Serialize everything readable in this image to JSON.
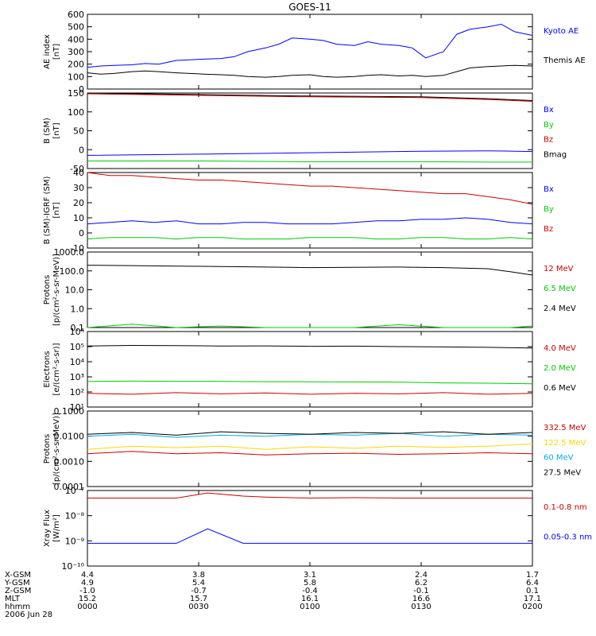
{
  "title": "GOES-11",
  "colors": {
    "black": "#000000",
    "blue": "#0000ff",
    "red": "#cc0000",
    "green": "#00cc00",
    "yellow": "#ffd700",
    "cyan": "#00aadd"
  },
  "chart_data": [
    {
      "type": "line",
      "ylabel": [
        "AE index",
        "[nT]"
      ],
      "ylim": [
        0,
        600
      ],
      "scale": "linear",
      "ticks": [
        0,
        100,
        200,
        300,
        400,
        500,
        600
      ],
      "tick_labels": [
        "0",
        "100",
        "200",
        "300",
        "400",
        "500",
        "600"
      ],
      "x": [
        0,
        0.03,
        0.06,
        0.1,
        0.13,
        0.16,
        0.2,
        0.23,
        0.26,
        0.3,
        0.33,
        0.36,
        0.4,
        0.43,
        0.46,
        0.5,
        0.53,
        0.56,
        0.6,
        0.63,
        0.66,
        0.7,
        0.73,
        0.76,
        0.8,
        0.83,
        0.86,
        0.9,
        0.93,
        0.96,
        1
      ],
      "series": [
        {
          "name": "Kyoto AE",
          "color": "blue",
          "values": [
            175,
            185,
            190,
            195,
            205,
            200,
            230,
            235,
            240,
            245,
            260,
            300,
            330,
            360,
            410,
            400,
            390,
            360,
            350,
            380,
            360,
            350,
            330,
            250,
            300,
            440,
            480,
            500,
            520,
            460,
            430
          ]
        },
        {
          "name": "Themis AE",
          "color": "black",
          "values": [
            130,
            120,
            125,
            140,
            145,
            140,
            130,
            125,
            120,
            115,
            110,
            100,
            95,
            100,
            110,
            115,
            100,
            95,
            100,
            110,
            115,
            105,
            110,
            100,
            110,
            140,
            170,
            180,
            185,
            190,
            185
          ]
        }
      ]
    },
    {
      "type": "line",
      "ylabel": [
        "B (SM)",
        "[nT]"
      ],
      "ylim": [
        -50,
        150
      ],
      "scale": "linear",
      "ticks": [
        -50,
        0,
        50,
        100,
        150
      ],
      "tick_labels": [
        "-50",
        "0",
        "50",
        "100",
        "150"
      ],
      "x": [
        0,
        0.25,
        0.5,
        0.75,
        0.9,
        1
      ],
      "series": [
        {
          "name": "Bx",
          "color": "blue",
          "values": [
            -15,
            -12,
            -8,
            -4,
            -3,
            -5
          ]
        },
        {
          "name": "By",
          "color": "green",
          "values": [
            -30,
            -30,
            -32,
            -32,
            -33,
            -33
          ]
        },
        {
          "name": "Bz",
          "color": "red",
          "values": [
            148,
            144,
            140,
            138,
            133,
            128
          ]
        },
        {
          "name": "Bmag",
          "color": "black",
          "values": [
            150,
            146,
            142,
            140,
            135,
            130
          ]
        }
      ]
    },
    {
      "type": "line",
      "ylabel": [
        "B (SM)-IGRF (SM)",
        "[nT]"
      ],
      "ylim": [
        -10,
        40
      ],
      "scale": "linear",
      "ticks": [
        -10,
        0,
        10,
        20,
        30,
        40
      ],
      "tick_labels": [
        "-10",
        "0",
        "10",
        "20",
        "30",
        "40"
      ],
      "x": [
        0,
        0.05,
        0.1,
        0.15,
        0.2,
        0.25,
        0.3,
        0.35,
        0.4,
        0.45,
        0.5,
        0.55,
        0.6,
        0.65,
        0.7,
        0.75,
        0.8,
        0.85,
        0.9,
        0.95,
        1
      ],
      "series": [
        {
          "name": "Bx",
          "color": "blue",
          "values": [
            6,
            7,
            8,
            7,
            8,
            6,
            6,
            7,
            7,
            6,
            6,
            6,
            7,
            8,
            8,
            9,
            9,
            10,
            9,
            7,
            6
          ]
        },
        {
          "name": "By",
          "color": "green",
          "values": [
            -4,
            -3,
            -3,
            -3,
            -4,
            -3,
            -3,
            -4,
            -4,
            -4,
            -3,
            -3,
            -3,
            -4,
            -4,
            -3,
            -3,
            -4,
            -4,
            -3,
            -4
          ]
        },
        {
          "name": "Bz",
          "color": "red",
          "values": [
            40,
            38,
            38,
            37,
            36,
            35,
            35,
            34,
            33,
            32,
            31,
            31,
            30,
            29,
            28,
            27,
            26,
            26,
            24,
            22,
            19
          ]
        }
      ]
    },
    {
      "type": "line",
      "ylabel": [
        "Protons",
        "[p/(cm²-s-sr-MeV)]"
      ],
      "ylim": [
        0.1,
        1000
      ],
      "scale": "log",
      "ticks": [
        0.1,
        1,
        10,
        100,
        1000
      ],
      "tick_labels": [
        "0.1",
        "1.0",
        "10.0",
        "100.0",
        "1000.0"
      ],
      "x": [
        0,
        0.1,
        0.2,
        0.3,
        0.4,
        0.5,
        0.6,
        0.7,
        0.8,
        0.9,
        0.95,
        1
      ],
      "series": [
        {
          "name": "12 MeV",
          "color": "red",
          "values": [
            null,
            null,
            null,
            null,
            null,
            null,
            null,
            null,
            null,
            null,
            null,
            null
          ]
        },
        {
          "name": "6.5 MeV",
          "color": "green",
          "values": [
            0.1,
            0.15,
            0.1,
            0.12,
            0.1,
            0.1,
            0.1,
            0.14,
            0.1,
            0.1,
            0.1,
            0.12
          ]
        },
        {
          "name": "2.4 MeV",
          "color": "black",
          "values": [
            200,
            190,
            180,
            170,
            160,
            150,
            155,
            160,
            150,
            130,
            90,
            60
          ]
        }
      ]
    },
    {
      "type": "line",
      "ylabel": [
        "Electrons",
        "[e/(cm²-s-sr)]"
      ],
      "ylim": [
        10,
        1000000
      ],
      "scale": "log",
      "ticks": [
        10,
        100,
        1000,
        10000,
        100000,
        1000000
      ],
      "tick_labels": [
        "10¹",
        "10²",
        "10³",
        "10⁴",
        "10⁵",
        "10⁶"
      ],
      "x": [
        0,
        0.1,
        0.2,
        0.3,
        0.4,
        0.5,
        0.6,
        0.7,
        0.8,
        0.9,
        1
      ],
      "series": [
        {
          "name": "4.0 MeV",
          "color": "red",
          "values": [
            80,
            70,
            90,
            75,
            85,
            70,
            80,
            75,
            90,
            70,
            80
          ]
        },
        {
          "name": "2.0 MeV",
          "color": "green",
          "values": [
            500,
            520,
            510,
            500,
            480,
            470,
            460,
            450,
            400,
            380,
            350
          ]
        },
        {
          "name": "0.6 MeV",
          "color": "black",
          "values": [
            110000,
            120000,
            115000,
            110000,
            112000,
            105000,
            108000,
            100000,
            95000,
            90000,
            80000
          ]
        }
      ]
    },
    {
      "type": "line",
      "ylabel": [
        "Protons",
        "[p/(cm²-s-sr-MeV)]"
      ],
      "ylim": [
        0.0001,
        0.1
      ],
      "scale": "log",
      "ticks": [
        0.0001,
        0.001,
        0.01,
        0.1
      ],
      "tick_labels": [
        "0.0001",
        "0.0010",
        "0.0100",
        "0.1000"
      ],
      "x": [
        0,
        0.1,
        0.2,
        0.3,
        0.4,
        0.5,
        0.6,
        0.7,
        0.8,
        0.9,
        1
      ],
      "series": [
        {
          "name": "332.5 MeV",
          "color": "red",
          "values": [
            0.002,
            0.0025,
            0.002,
            0.0022,
            0.0018,
            0.002,
            0.0021,
            0.0019,
            0.002,
            0.0022,
            0.002
          ]
        },
        {
          "name": "122.5 MeV",
          "color": "yellow",
          "values": [
            0.003,
            0.004,
            0.0035,
            0.004,
            0.003,
            0.0038,
            0.0033,
            0.004,
            0.0036,
            0.004,
            0.005
          ]
        },
        {
          "name": "60 MeV",
          "color": "cyan",
          "values": [
            0.01,
            0.012,
            0.009,
            0.011,
            0.01,
            0.012,
            0.011,
            0.013,
            0.01,
            0.012,
            0.011
          ]
        },
        {
          "name": "27.5 MeV",
          "color": "black",
          "values": [
            0.012,
            0.014,
            0.011,
            0.015,
            0.013,
            0.012,
            0.014,
            0.013,
            0.015,
            0.012,
            0.014
          ]
        }
      ]
    },
    {
      "type": "line",
      "ylabel": [
        "Xray Flux",
        "[W/m²]"
      ],
      "ylim": [
        1e-10,
        1e-07
      ],
      "scale": "log",
      "ticks": [
        1e-10,
        1e-09,
        1e-08,
        1e-07
      ],
      "tick_labels": [
        "10⁻¹⁰",
        "10⁻⁹",
        "10⁻⁸",
        "10⁻⁷"
      ],
      "x": [
        0,
        0.1,
        0.2,
        0.27,
        0.35,
        0.4,
        0.5,
        0.6,
        0.7,
        0.8,
        0.9,
        1
      ],
      "series": [
        {
          "name": "0.1-0.8 nm",
          "color": "red",
          "values": [
            5e-08,
            5e-08,
            5e-08,
            8e-08,
            6e-08,
            5.5e-08,
            5e-08,
            5.2e-08,
            5e-08,
            5e-08,
            5e-08,
            5e-08
          ]
        },
        {
          "name": "0.05-0.3 nm",
          "color": "blue",
          "values": [
            8e-10,
            8e-10,
            8e-10,
            3e-09,
            8e-10,
            8e-10,
            8e-10,
            8e-10,
            8e-10,
            8e-10,
            8e-10,
            8e-10
          ]
        }
      ]
    }
  ],
  "x_axis": {
    "row_labels": [
      "X-GSM",
      "Y-GSM",
      "Z-GSM",
      "MLT",
      "hhmm",
      "2006 Jun 28"
    ],
    "ticks": [
      {
        "pos": 0,
        "values": [
          "4.4",
          "4.9",
          "-1.0",
          "15.2",
          "0000"
        ]
      },
      {
        "pos": 0.25,
        "values": [
          "3.8",
          "5.4",
          "-0.7",
          "15.7",
          "0030"
        ]
      },
      {
        "pos": 0.5,
        "values": [
          "3.1",
          "5.8",
          "-0.4",
          "16.1",
          "0100"
        ]
      },
      {
        "pos": 0.75,
        "values": [
          "2.4",
          "6.2",
          "-0.1",
          "16.6",
          "0130"
        ]
      },
      {
        "pos": 1,
        "values": [
          "1.7",
          "6.4",
          "0.1",
          "17.1",
          "0200"
        ]
      }
    ]
  }
}
